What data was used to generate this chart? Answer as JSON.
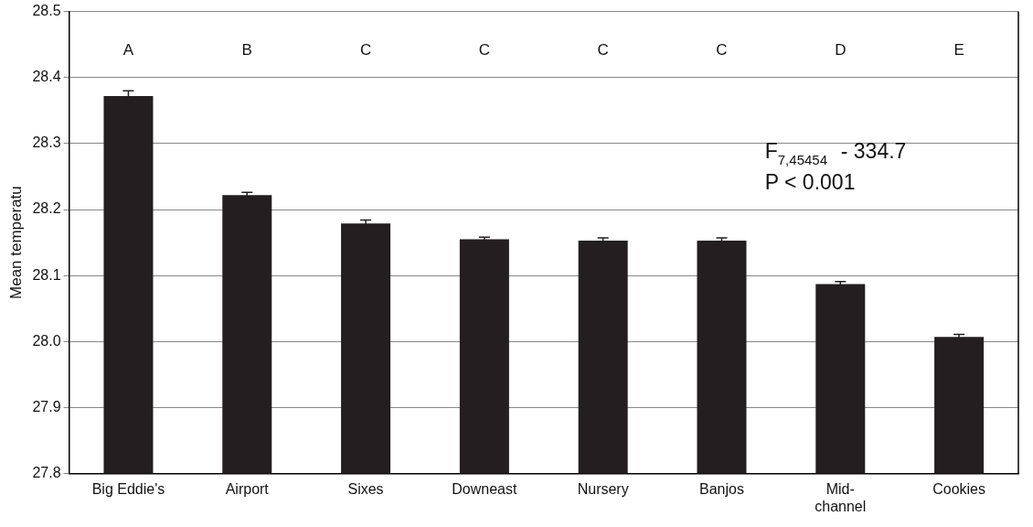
{
  "chart_data": {
    "type": "bar",
    "ylabel": "Mean temperatu",
    "categories": [
      "Big Eddie's",
      "Airport",
      "Sixes",
      "Downeast",
      "Nursery",
      "Banjos",
      "Mid-channel",
      "Cookies"
    ],
    "values": [
      28.372,
      28.222,
      28.179,
      28.155,
      28.153,
      28.153,
      28.087,
      28.007
    ],
    "errors": [
      0.008,
      0.004,
      0.005,
      0.003,
      0.004,
      0.004,
      0.004,
      0.004
    ],
    "color": "#231f20",
    "ylim": [
      27.8,
      28.5
    ],
    "yticks": [
      {
        "value": 27.8,
        "label": "27.8"
      },
      {
        "value": 27.9,
        "label": "27.9"
      },
      {
        "value": 28.0,
        "label": "28.0"
      },
      {
        "value": 28.1,
        "label": "28.1"
      },
      {
        "value": 28.2,
        "label": "28.2"
      },
      {
        "value": 28.3,
        "label": "28.3"
      },
      {
        "value": 28.4,
        "label": "28.4"
      },
      {
        "value": 28.5,
        "label": "28.5"
      }
    ],
    "grid": "y",
    "annotations": [
      "A",
      "B",
      "C",
      "C",
      "C",
      "C",
      "D",
      "E",
      "F$_{7,45454}$  - 334.7",
      "P < 0.001"
    ]
  }
}
